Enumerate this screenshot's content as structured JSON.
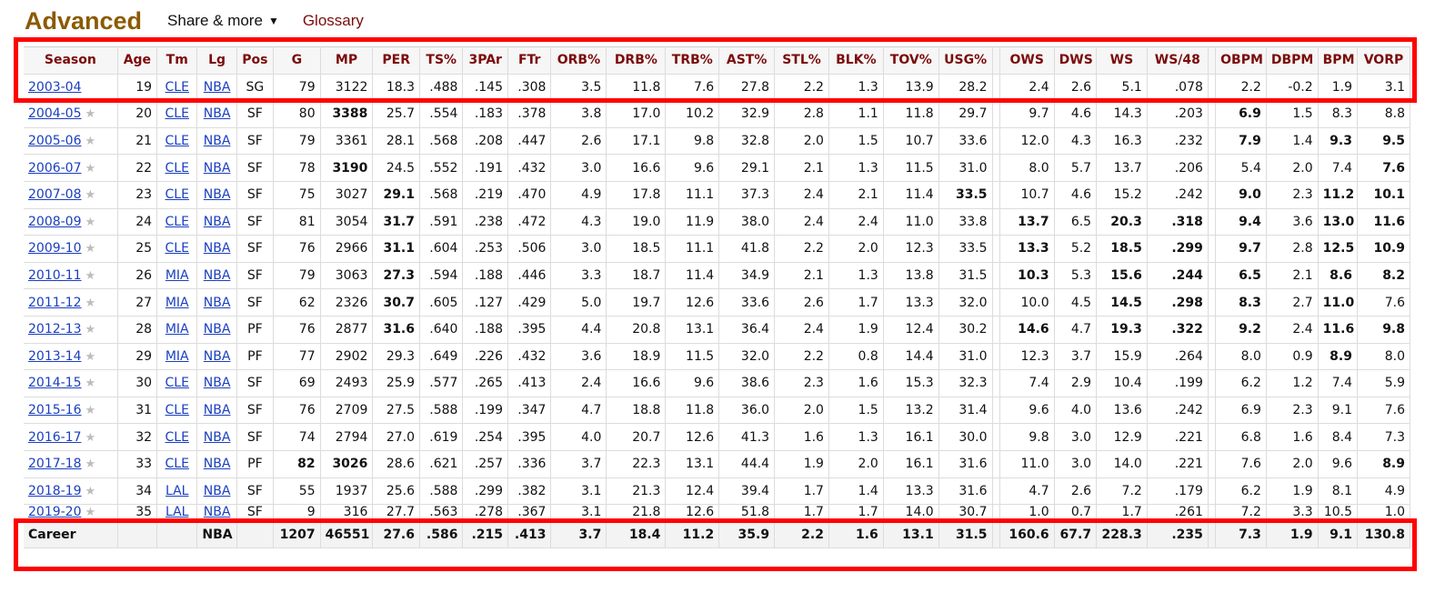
{
  "header": {
    "title": "Advanced",
    "share_label": "Share & more",
    "caret": "▼",
    "glossary_label": "Glossary"
  },
  "table": {
    "columns": [
      "Season",
      "Age",
      "Tm",
      "Lg",
      "Pos",
      "G",
      "MP",
      "PER",
      "TS%",
      "3PAr",
      "FTr",
      "ORB%",
      "DRB%",
      "TRB%",
      "AST%",
      "STL%",
      "BLK%",
      "TOV%",
      "USG%",
      "",
      "OWS",
      "DWS",
      "WS",
      "WS/48",
      "",
      "OBPM",
      "DBPM",
      "BPM",
      "VORP"
    ],
    "rows": [
      {
        "season": "2003-04",
        "star": false,
        "age": "19",
        "tm": "CLE",
        "lg": "NBA",
        "pos": "SG",
        "g": "79",
        "mp": "3122",
        "per": "18.3",
        "ts": ".488",
        "par3": ".145",
        "ftr": ".308",
        "orb": "3.5",
        "drb": "11.8",
        "trb": "7.6",
        "ast": "27.8",
        "stl": "2.2",
        "blk": "1.3",
        "tov": "13.9",
        "usg": "28.2",
        "ows": "2.4",
        "dws": "2.6",
        "ws": "5.1",
        "ws48": ".078",
        "obpm": "2.2",
        "dbpm": "-0.2",
        "bpm": "1.9",
        "vorp": "3.1",
        "bold": []
      },
      {
        "season": "2004-05",
        "star": true,
        "age": "20",
        "tm": "CLE",
        "lg": "NBA",
        "pos": "SF",
        "g": "80",
        "mp": "3388",
        "per": "25.7",
        "ts": ".554",
        "par3": ".183",
        "ftr": ".378",
        "orb": "3.8",
        "drb": "17.0",
        "trb": "10.2",
        "ast": "32.9",
        "stl": "2.8",
        "blk": "1.1",
        "tov": "11.8",
        "usg": "29.7",
        "ows": "9.7",
        "dws": "4.6",
        "ws": "14.3",
        "ws48": ".203",
        "obpm": "6.9",
        "dbpm": "1.5",
        "bpm": "8.3",
        "vorp": "8.8",
        "bold": [
          "mp",
          "obpm"
        ]
      },
      {
        "season": "2005-06",
        "star": true,
        "age": "21",
        "tm": "CLE",
        "lg": "NBA",
        "pos": "SF",
        "g": "79",
        "mp": "3361",
        "per": "28.1",
        "ts": ".568",
        "par3": ".208",
        "ftr": ".447",
        "orb": "2.6",
        "drb": "17.1",
        "trb": "9.8",
        "ast": "32.8",
        "stl": "2.0",
        "blk": "1.5",
        "tov": "10.7",
        "usg": "33.6",
        "ows": "12.0",
        "dws": "4.3",
        "ws": "16.3",
        "ws48": ".232",
        "obpm": "7.9",
        "dbpm": "1.4",
        "bpm": "9.3",
        "vorp": "9.5",
        "bold": [
          "obpm",
          "bpm",
          "vorp"
        ]
      },
      {
        "season": "2006-07",
        "star": true,
        "age": "22",
        "tm": "CLE",
        "lg": "NBA",
        "pos": "SF",
        "g": "78",
        "mp": "3190",
        "per": "24.5",
        "ts": ".552",
        "par3": ".191",
        "ftr": ".432",
        "orb": "3.0",
        "drb": "16.6",
        "trb": "9.6",
        "ast": "29.1",
        "stl": "2.1",
        "blk": "1.3",
        "tov": "11.5",
        "usg": "31.0",
        "ows": "8.0",
        "dws": "5.7",
        "ws": "13.7",
        "ws48": ".206",
        "obpm": "5.4",
        "dbpm": "2.0",
        "bpm": "7.4",
        "vorp": "7.6",
        "bold": [
          "mp",
          "vorp"
        ]
      },
      {
        "season": "2007-08",
        "star": true,
        "age": "23",
        "tm": "CLE",
        "lg": "NBA",
        "pos": "SF",
        "g": "75",
        "mp": "3027",
        "per": "29.1",
        "ts": ".568",
        "par3": ".219",
        "ftr": ".470",
        "orb": "4.9",
        "drb": "17.8",
        "trb": "11.1",
        "ast": "37.3",
        "stl": "2.4",
        "blk": "2.1",
        "tov": "11.4",
        "usg": "33.5",
        "ows": "10.7",
        "dws": "4.6",
        "ws": "15.2",
        "ws48": ".242",
        "obpm": "9.0",
        "dbpm": "2.3",
        "bpm": "11.2",
        "vorp": "10.1",
        "bold": [
          "per",
          "usg",
          "obpm",
          "bpm",
          "vorp"
        ]
      },
      {
        "season": "2008-09",
        "star": true,
        "age": "24",
        "tm": "CLE",
        "lg": "NBA",
        "pos": "SF",
        "g": "81",
        "mp": "3054",
        "per": "31.7",
        "ts": ".591",
        "par3": ".238",
        "ftr": ".472",
        "orb": "4.3",
        "drb": "19.0",
        "trb": "11.9",
        "ast": "38.0",
        "stl": "2.4",
        "blk": "2.4",
        "tov": "11.0",
        "usg": "33.8",
        "ows": "13.7",
        "dws": "6.5",
        "ws": "20.3",
        "ws48": ".318",
        "obpm": "9.4",
        "dbpm": "3.6",
        "bpm": "13.0",
        "vorp": "11.6",
        "bold": [
          "per",
          "ows",
          "ws",
          "ws48",
          "obpm",
          "bpm",
          "vorp"
        ]
      },
      {
        "season": "2009-10",
        "star": true,
        "age": "25",
        "tm": "CLE",
        "lg": "NBA",
        "pos": "SF",
        "g": "76",
        "mp": "2966",
        "per": "31.1",
        "ts": ".604",
        "par3": ".253",
        "ftr": ".506",
        "orb": "3.0",
        "drb": "18.5",
        "trb": "11.1",
        "ast": "41.8",
        "stl": "2.2",
        "blk": "2.0",
        "tov": "12.3",
        "usg": "33.5",
        "ows": "13.3",
        "dws": "5.2",
        "ws": "18.5",
        "ws48": ".299",
        "obpm": "9.7",
        "dbpm": "2.8",
        "bpm": "12.5",
        "vorp": "10.9",
        "bold": [
          "per",
          "ows",
          "ws",
          "ws48",
          "obpm",
          "bpm",
          "vorp"
        ]
      },
      {
        "season": "2010-11",
        "star": true,
        "age": "26",
        "tm": "MIA",
        "lg": "NBA",
        "pos": "SF",
        "g": "79",
        "mp": "3063",
        "per": "27.3",
        "ts": ".594",
        "par3": ".188",
        "ftr": ".446",
        "orb": "3.3",
        "drb": "18.7",
        "trb": "11.4",
        "ast": "34.9",
        "stl": "2.1",
        "blk": "1.3",
        "tov": "13.8",
        "usg": "31.5",
        "ows": "10.3",
        "dws": "5.3",
        "ws": "15.6",
        "ws48": ".244",
        "obpm": "6.5",
        "dbpm": "2.1",
        "bpm": "8.6",
        "vorp": "8.2",
        "bold": [
          "per",
          "ows",
          "ws",
          "ws48",
          "obpm",
          "bpm",
          "vorp"
        ]
      },
      {
        "season": "2011-12",
        "star": true,
        "age": "27",
        "tm": "MIA",
        "lg": "NBA",
        "pos": "SF",
        "g": "62",
        "mp": "2326",
        "per": "30.7",
        "ts": ".605",
        "par3": ".127",
        "ftr": ".429",
        "orb": "5.0",
        "drb": "19.7",
        "trb": "12.6",
        "ast": "33.6",
        "stl": "2.6",
        "blk": "1.7",
        "tov": "13.3",
        "usg": "32.0",
        "ows": "10.0",
        "dws": "4.5",
        "ws": "14.5",
        "ws48": ".298",
        "obpm": "8.3",
        "dbpm": "2.7",
        "bpm": "11.0",
        "vorp": "7.6",
        "bold": [
          "per",
          "ws",
          "ws48",
          "obpm",
          "bpm"
        ]
      },
      {
        "season": "2012-13",
        "star": true,
        "age": "28",
        "tm": "MIA",
        "lg": "NBA",
        "pos": "PF",
        "g": "76",
        "mp": "2877",
        "per": "31.6",
        "ts": ".640",
        "par3": ".188",
        "ftr": ".395",
        "orb": "4.4",
        "drb": "20.8",
        "trb": "13.1",
        "ast": "36.4",
        "stl": "2.4",
        "blk": "1.9",
        "tov": "12.4",
        "usg": "30.2",
        "ows": "14.6",
        "dws": "4.7",
        "ws": "19.3",
        "ws48": ".322",
        "obpm": "9.2",
        "dbpm": "2.4",
        "bpm": "11.6",
        "vorp": "9.8",
        "bold": [
          "per",
          "ows",
          "ws",
          "ws48",
          "obpm",
          "bpm",
          "vorp"
        ]
      },
      {
        "season": "2013-14",
        "star": true,
        "age": "29",
        "tm": "MIA",
        "lg": "NBA",
        "pos": "PF",
        "g": "77",
        "mp": "2902",
        "per": "29.3",
        "ts": ".649",
        "par3": ".226",
        "ftr": ".432",
        "orb": "3.6",
        "drb": "18.9",
        "trb": "11.5",
        "ast": "32.0",
        "stl": "2.2",
        "blk": "0.8",
        "tov": "14.4",
        "usg": "31.0",
        "ows": "12.3",
        "dws": "3.7",
        "ws": "15.9",
        "ws48": ".264",
        "obpm": "8.0",
        "dbpm": "0.9",
        "bpm": "8.9",
        "vorp": "8.0",
        "bold": [
          "bpm"
        ]
      },
      {
        "season": "2014-15",
        "star": true,
        "age": "30",
        "tm": "CLE",
        "lg": "NBA",
        "pos": "SF",
        "g": "69",
        "mp": "2493",
        "per": "25.9",
        "ts": ".577",
        "par3": ".265",
        "ftr": ".413",
        "orb": "2.4",
        "drb": "16.6",
        "trb": "9.6",
        "ast": "38.6",
        "stl": "2.3",
        "blk": "1.6",
        "tov": "15.3",
        "usg": "32.3",
        "ows": "7.4",
        "dws": "2.9",
        "ws": "10.4",
        "ws48": ".199",
        "obpm": "6.2",
        "dbpm": "1.2",
        "bpm": "7.4",
        "vorp": "5.9",
        "bold": []
      },
      {
        "season": "2015-16",
        "star": true,
        "age": "31",
        "tm": "CLE",
        "lg": "NBA",
        "pos": "SF",
        "g": "76",
        "mp": "2709",
        "per": "27.5",
        "ts": ".588",
        "par3": ".199",
        "ftr": ".347",
        "orb": "4.7",
        "drb": "18.8",
        "trb": "11.8",
        "ast": "36.0",
        "stl": "2.0",
        "blk": "1.5",
        "tov": "13.2",
        "usg": "31.4",
        "ows": "9.6",
        "dws": "4.0",
        "ws": "13.6",
        "ws48": ".242",
        "obpm": "6.9",
        "dbpm": "2.3",
        "bpm": "9.1",
        "vorp": "7.6",
        "bold": []
      },
      {
        "season": "2016-17",
        "star": true,
        "age": "32",
        "tm": "CLE",
        "lg": "NBA",
        "pos": "SF",
        "g": "74",
        "mp": "2794",
        "per": "27.0",
        "ts": ".619",
        "par3": ".254",
        "ftr": ".395",
        "orb": "4.0",
        "drb": "20.7",
        "trb": "12.6",
        "ast": "41.3",
        "stl": "1.6",
        "blk": "1.3",
        "tov": "16.1",
        "usg": "30.0",
        "ows": "9.8",
        "dws": "3.0",
        "ws": "12.9",
        "ws48": ".221",
        "obpm": "6.8",
        "dbpm": "1.6",
        "bpm": "8.4",
        "vorp": "7.3",
        "bold": []
      },
      {
        "season": "2017-18",
        "star": true,
        "age": "33",
        "tm": "CLE",
        "lg": "NBA",
        "pos": "PF",
        "g": "82",
        "mp": "3026",
        "per": "28.6",
        "ts": ".621",
        "par3": ".257",
        "ftr": ".336",
        "orb": "3.7",
        "drb": "22.3",
        "trb": "13.1",
        "ast": "44.4",
        "stl": "1.9",
        "blk": "2.0",
        "tov": "16.1",
        "usg": "31.6",
        "ows": "11.0",
        "dws": "3.0",
        "ws": "14.0",
        "ws48": ".221",
        "obpm": "7.6",
        "dbpm": "2.0",
        "bpm": "9.6",
        "vorp": "8.9",
        "bold": [
          "g",
          "mp",
          "vorp"
        ]
      },
      {
        "season": "2018-19",
        "star": true,
        "age": "34",
        "tm": "LAL",
        "lg": "NBA",
        "pos": "SF",
        "g": "55",
        "mp": "1937",
        "per": "25.6",
        "ts": ".588",
        "par3": ".299",
        "ftr": ".382",
        "orb": "3.1",
        "drb": "21.3",
        "trb": "12.4",
        "ast": "39.4",
        "stl": "1.7",
        "blk": "1.4",
        "tov": "13.3",
        "usg": "31.6",
        "ows": "4.7",
        "dws": "2.6",
        "ws": "7.2",
        "ws48": ".179",
        "obpm": "6.2",
        "dbpm": "1.9",
        "bpm": "8.1",
        "vorp": "4.9",
        "bold": []
      },
      {
        "season": "2019-20",
        "star": true,
        "age": "35",
        "tm": "LAL",
        "lg": "NBA",
        "pos": "SF",
        "g": "9",
        "mp": "316",
        "per": "27.7",
        "ts": ".563",
        "par3": ".278",
        "ftr": ".367",
        "orb": "3.1",
        "drb": "21.8",
        "trb": "12.6",
        "ast": "51.8",
        "stl": "1.7",
        "blk": "1.7",
        "tov": "14.0",
        "usg": "30.7",
        "ows": "1.0",
        "dws": "0.7",
        "ws": "1.7",
        "ws48": ".261",
        "obpm": "7.2",
        "dbpm": "3.3",
        "bpm": "10.5",
        "vorp": "1.0",
        "bold": []
      }
    ],
    "career": {
      "season": "Career",
      "age": "",
      "tm": "",
      "lg": "NBA",
      "pos": "",
      "g": "1207",
      "mp": "46551",
      "per": "27.6",
      "ts": ".586",
      "par3": ".215",
      "ftr": ".413",
      "orb": "3.7",
      "drb": "18.4",
      "trb": "11.2",
      "ast": "35.9",
      "stl": "2.2",
      "blk": "1.6",
      "tov": "13.1",
      "usg": "31.5",
      "ows": "160.6",
      "dws": "67.7",
      "ws": "228.3",
      "ws48": ".235",
      "obpm": "7.3",
      "dbpm": "1.9",
      "bpm": "9.1",
      "vorp": "130.8"
    }
  },
  "colors": {
    "title": "#8b5a00",
    "header_text": "#7b0b0b",
    "link": "#1a3fbf",
    "highlight_box": "#ff0000"
  },
  "icons": {
    "star": "star-icon",
    "caret": "chevron-down-icon"
  }
}
